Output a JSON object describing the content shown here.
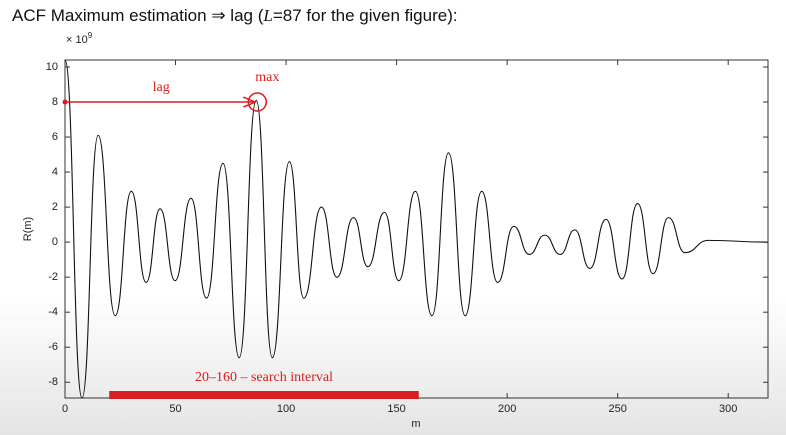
{
  "chart_data": {
    "type": "line",
    "title_parts": [
      "ACF Maximum estimation ⇒ lag (",
      "L",
      "=87 for the given figure):"
    ],
    "ylabel": "R(m)",
    "xlabel": "m",
    "y_multiplier": {
      "base": "× 10",
      "exponent": "9"
    },
    "xlim": [
      0,
      318
    ],
    "ylim": [
      -8.9,
      10.4
    ],
    "xticks": [
      0,
      50,
      100,
      150,
      200,
      250,
      300
    ],
    "yticks": [
      -8,
      -6,
      -4,
      -2,
      0,
      2,
      4,
      6,
      8,
      10
    ],
    "series": [
      {
        "name": "R(m)",
        "color": "#111111",
        "x": [
          0,
          7.7,
          15,
          22.7,
          30,
          36.7,
          43,
          49.8,
          57,
          64,
          71.5,
          78.8,
          86.5,
          93.8,
          101.5,
          108,
          116,
          123,
          130.5,
          137,
          144.5,
          151,
          158.5,
          166,
          173.5,
          181,
          188.5,
          195.7,
          203,
          210,
          217,
          224,
          230.6,
          237.4,
          244.7,
          252,
          259,
          266,
          273,
          280.4,
          291,
          318
        ],
        "values": [
          10.4,
          -8.9,
          6.1,
          -4.2,
          2.9,
          -2.3,
          1.9,
          -2.2,
          2.5,
          -3.2,
          4.5,
          -6.6,
          8.1,
          -6.6,
          4.6,
          -3.2,
          2.0,
          -2.0,
          1.4,
          -1.4,
          1.7,
          -2.2,
          2.9,
          -4.2,
          5.1,
          -4.2,
          2.9,
          -2.3,
          0.9,
          -0.7,
          0.4,
          -0.7,
          0.7,
          -1.5,
          1.3,
          -2.1,
          2.2,
          -1.8,
          1.4,
          -0.6,
          0.1,
          0
        ]
      }
    ],
    "lag_arrow": {
      "label": "lag",
      "from": 0,
      "to": 87,
      "y": 8
    },
    "max_marker": {
      "label": "max",
      "x": 87,
      "y": 8
    },
    "search_interval": {
      "label": "20–160 – search interval",
      "start": 20,
      "end": 160
    },
    "annotation_color": "#d81e1e"
  }
}
